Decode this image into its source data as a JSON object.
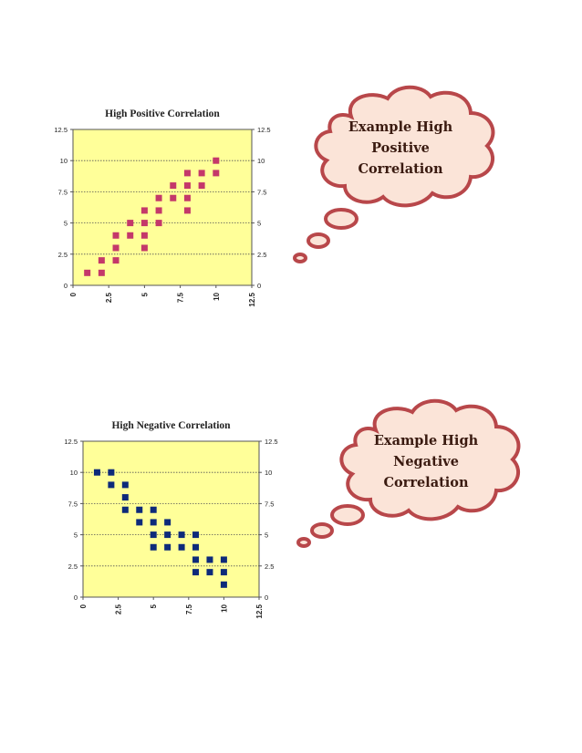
{
  "chart_data": [
    {
      "type": "scatter",
      "title": "High Positive Correlation",
      "xlim": [
        0,
        12.5
      ],
      "ylim": [
        0,
        12.5
      ],
      "x_ticks": [
        "0",
        "2.5",
        "5",
        "7.5",
        "10",
        "12.5"
      ],
      "y_ticks": [
        "0",
        "2.5",
        "5",
        "7.5",
        "10",
        "12.5"
      ],
      "grid": "horizontal dotted",
      "background": "#ffff99",
      "marker_color": "#c4386a",
      "points": [
        [
          1,
          1
        ],
        [
          2,
          1
        ],
        [
          2,
          2
        ],
        [
          3,
          2
        ],
        [
          3,
          3
        ],
        [
          3,
          4
        ],
        [
          4,
          4
        ],
        [
          4,
          5
        ],
        [
          5,
          3
        ],
        [
          5,
          4
        ],
        [
          5,
          5
        ],
        [
          5,
          6
        ],
        [
          6,
          5
        ],
        [
          6,
          6
        ],
        [
          6,
          7
        ],
        [
          7,
          7
        ],
        [
          7,
          8
        ],
        [
          8,
          6
        ],
        [
          8,
          7
        ],
        [
          8,
          8
        ],
        [
          8,
          9
        ],
        [
          9,
          8
        ],
        [
          9,
          9
        ],
        [
          10,
          9
        ],
        [
          10,
          10
        ]
      ]
    },
    {
      "type": "scatter",
      "title": "High Negative Correlation",
      "xlim": [
        0,
        12.5
      ],
      "ylim": [
        0,
        12.5
      ],
      "x_ticks": [
        "0",
        "2.5",
        "5",
        "7.5",
        "10",
        "12.5"
      ],
      "y_ticks": [
        "0",
        "2.5",
        "5",
        "7.5",
        "10",
        "12.5"
      ],
      "grid": "horizontal dotted",
      "background": "#ffff99",
      "marker_color": "#0d2a7a",
      "points": [
        [
          1,
          10
        ],
        [
          2,
          10
        ],
        [
          2,
          9
        ],
        [
          3,
          9
        ],
        [
          3,
          8
        ],
        [
          3,
          7
        ],
        [
          4,
          7
        ],
        [
          4,
          6
        ],
        [
          5,
          7
        ],
        [
          5,
          6
        ],
        [
          5,
          5
        ],
        [
          5,
          4
        ],
        [
          6,
          6
        ],
        [
          6,
          5
        ],
        [
          6,
          4
        ],
        [
          7,
          5
        ],
        [
          7,
          4
        ],
        [
          8,
          5
        ],
        [
          8,
          4
        ],
        [
          8,
          3
        ],
        [
          8,
          2
        ],
        [
          9,
          3
        ],
        [
          9,
          2
        ],
        [
          10,
          3
        ],
        [
          10,
          2
        ],
        [
          10,
          1
        ]
      ]
    }
  ],
  "bubbles": [
    {
      "lines": [
        "Example High",
        "Positive",
        "Correlation"
      ]
    },
    {
      "lines": [
        "Example High",
        "Negative",
        "Correlation"
      ]
    }
  ],
  "colors": {
    "bubble_fill": "#fbe4d8",
    "bubble_stroke": "#b8474a"
  }
}
